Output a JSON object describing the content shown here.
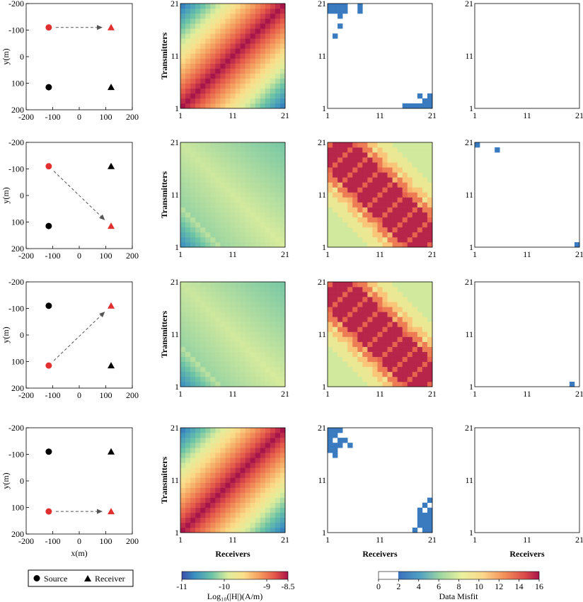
{
  "labels": {
    "y_axis": "y(m)",
    "x_axis": "x(m)",
    "transmitters": "Transmitters",
    "receivers": "Receivers",
    "source": "Source",
    "receiver": "Receiver",
    "field_colorbar": "Log₁₀(|H|)(A/m)",
    "misfit_colorbar": "Data Misfit"
  },
  "colors": {
    "active": "#e03030",
    "inactive": "#000000",
    "misfit_blue": "#3a7bc0"
  },
  "chart_data": {
    "type": "heatmap",
    "geometry_axis": {
      "xlim": [
        -200,
        200
      ],
      "ylim": [
        -200,
        200
      ],
      "y_inverted": true,
      "xticks": [
        "-200",
        "-100",
        "0",
        "100",
        "200"
      ],
      "yticks": [
        "-200",
        "-100",
        "0",
        "100",
        "200"
      ],
      "sources": [
        [
          -115,
          -110
        ],
        [
          -115,
          115
        ]
      ],
      "receivers": [
        [
          120,
          -110
        ],
        [
          120,
          115
        ]
      ]
    },
    "matrix_axis": {
      "ticks": [
        "1",
        "11",
        "21"
      ],
      "size": 21
    },
    "field_colorbar": {
      "range": [
        -11,
        -8.5
      ],
      "ticks": [
        "-11",
        "-10",
        "-9",
        "-8.5"
      ]
    },
    "misfit_colorbar": {
      "range": [
        0,
        16
      ],
      "ticks": [
        "0",
        "2",
        "4",
        "6",
        "8",
        "10",
        "12",
        "14",
        "16"
      ]
    },
    "rows": [
      {
        "active_source": [
          -115,
          -110
        ],
        "active_receiver": [
          120,
          -110
        ],
        "field_pattern": "diag_peak",
        "misfit_pattern": "sparse",
        "misfit_cells": [
          [
            1,
            21
          ],
          [
            2,
            21
          ],
          [
            3,
            21
          ],
          [
            4,
            21
          ],
          [
            1,
            20
          ],
          [
            2,
            20
          ],
          [
            3,
            20
          ],
          [
            4,
            20
          ],
          [
            7,
            21
          ],
          [
            7,
            20
          ],
          [
            3,
            19
          ],
          [
            3,
            17
          ],
          [
            2,
            15
          ],
          [
            18,
            1
          ],
          [
            19,
            1
          ],
          [
            20,
            1
          ],
          [
            21,
            1
          ],
          [
            17,
            1
          ],
          [
            16,
            1
          ],
          [
            21,
            2
          ],
          [
            21,
            3
          ],
          [
            20,
            2
          ],
          [
            19,
            3
          ]
        ],
        "final_cells": []
      },
      {
        "active_source": [
          -115,
          -110
        ],
        "active_receiver": [
          120,
          115
        ],
        "field_pattern": "anti_mid",
        "misfit_pattern": "anti_band",
        "misfit_cells": [],
        "final_cells": [
          [
            1,
            21
          ],
          [
            5,
            20
          ],
          [
            21,
            1
          ]
        ]
      },
      {
        "active_source": [
          -115,
          115
        ],
        "active_receiver": [
          120,
          -110
        ],
        "field_pattern": "anti_mid",
        "misfit_pattern": "anti_band",
        "misfit_cells": [],
        "final_cells": [
          [
            20,
            1
          ]
        ]
      },
      {
        "active_source": [
          -115,
          115
        ],
        "active_receiver": [
          120,
          115
        ],
        "field_pattern": "diag_peak",
        "misfit_pattern": "sparse",
        "misfit_cells": [
          [
            1,
            21
          ],
          [
            1,
            20
          ],
          [
            1,
            19
          ],
          [
            1,
            18
          ],
          [
            1,
            17
          ],
          [
            2,
            21
          ],
          [
            2,
            20
          ],
          [
            2,
            18
          ],
          [
            2,
            17
          ],
          [
            2,
            16
          ],
          [
            3,
            18
          ],
          [
            3,
            19
          ],
          [
            3,
            21
          ],
          [
            4,
            19
          ],
          [
            5,
            18
          ],
          [
            20,
            1
          ],
          [
            21,
            1
          ],
          [
            21,
            2
          ],
          [
            20,
            2
          ],
          [
            21,
            3
          ],
          [
            21,
            4
          ],
          [
            21,
            5
          ],
          [
            20,
            4
          ],
          [
            19,
            4
          ],
          [
            19,
            5
          ],
          [
            20,
            6
          ],
          [
            21,
            7
          ],
          [
            19,
            3
          ],
          [
            18,
            1
          ],
          [
            19,
            2
          ],
          [
            20,
            3
          ]
        ],
        "final_cells": []
      }
    ]
  }
}
